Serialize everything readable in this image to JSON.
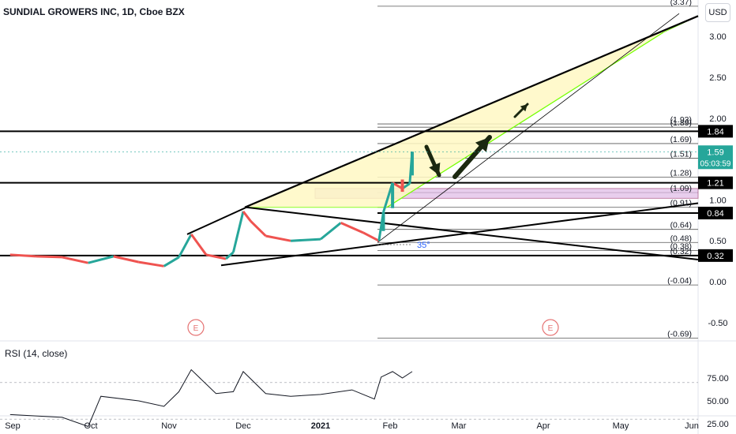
{
  "header": {
    "title": "SUNDIAL GROWERS INC, 1D, Cboe BZX",
    "currency_button": "USD"
  },
  "rsi_panel": {
    "label": "RSI (14, close)",
    "ticks": [
      "75.00",
      "50.00",
      "25.00"
    ]
  },
  "price_axis": {
    "ticks": [
      "3.00",
      "2.50",
      "2.00",
      "1.00",
      "0.50",
      "0.00",
      "-0.50"
    ]
  },
  "badges": {
    "level_1_84": "1.84",
    "level_1_21": "1.21",
    "level_0_84": "0.84",
    "level_0_32": "0.32",
    "last_price": "1.59",
    "countdown": "05:03:59"
  },
  "fib_labels": [
    "(3.37)",
    "(1.93)",
    "(1.89)",
    "(1.69)",
    "(1.51)",
    "(1.28)",
    "(1.09)",
    "(0.91)",
    "(0.64)",
    "(0.48)",
    "(0.38)",
    "(0.32)",
    "(-0.04)",
    "(-0.69)"
  ],
  "annotations": {
    "angle": "35°",
    "earnings_marker": "E"
  },
  "time_axis": {
    "labels": [
      "Sep",
      "Oct",
      "Nov",
      "Dec",
      "2021",
      "Feb",
      "Mar",
      "Apr",
      "May",
      "Jun"
    ]
  },
  "colors": {
    "up": "#26a69a",
    "down": "#ef5350",
    "wedge_fill": "#fff9c4",
    "wedge_edge": "#76ff03",
    "zone_fill": "#e1bee7",
    "rsi_line": "#131722",
    "earnings": "#e57373"
  },
  "chart_data": {
    "type": "candlestick",
    "title": "SUNDIAL GROWERS INC, 1D, Cboe BZX",
    "y_axis": {
      "range": [
        -0.75,
        3.45
      ],
      "ticks": [
        3.0,
        2.5,
        2.0,
        1.0,
        0.5,
        0.0,
        -0.5
      ]
    },
    "x_axis": {
      "labels": [
        "Sep",
        "Oct",
        "Nov",
        "Dec",
        "2021",
        "Feb",
        "Mar",
        "Apr",
        "May",
        "Jun"
      ]
    },
    "last_price": 1.59,
    "horizontal_levels": [
      1.84,
      1.21,
      0.84,
      0.32
    ],
    "fib_levels": [
      3.37,
      1.93,
      1.89,
      1.69,
      1.51,
      1.28,
      1.09,
      0.91,
      0.64,
      0.48,
      0.38,
      0.32,
      -0.04,
      -0.69
    ],
    "price_path": [
      {
        "date": "Aug 31",
        "close": 0.33
      },
      {
        "date": "Sep 10",
        "close": 0.31
      },
      {
        "date": "Sep 20",
        "close": 0.3
      },
      {
        "date": "Sep 30",
        "close": 0.23
      },
      {
        "date": "Oct 10",
        "close": 0.31
      },
      {
        "date": "Oct 20",
        "close": 0.24
      },
      {
        "date": "Oct 30",
        "close": 0.19
      },
      {
        "date": "Nov 5",
        "close": 0.3
      },
      {
        "date": "Nov 10",
        "close": 0.58
      },
      {
        "date": "Nov 16",
        "close": 0.33
      },
      {
        "date": "Nov 24",
        "close": 0.28
      },
      {
        "date": "Nov 27",
        "close": 0.36
      },
      {
        "date": "Dec 1",
        "close": 0.86
      },
      {
        "date": "Dec 4",
        "close": 0.74
      },
      {
        "date": "Dec 10",
        "close": 0.56
      },
      {
        "date": "Dec 20",
        "close": 0.5
      },
      {
        "date": "Jan 1",
        "close": 0.52
      },
      {
        "date": "Jan 10",
        "close": 0.72
      },
      {
        "date": "Jan 20",
        "close": 0.6
      },
      {
        "date": "Jan 27",
        "close": 0.5
      },
      {
        "date": "Jan 29",
        "close": 0.85
      },
      {
        "date": "Feb 2",
        "close": 1.21
      },
      {
        "date": "Feb 6",
        "close": 1.14
      },
      {
        "date": "Feb 9",
        "close": 1.2
      },
      {
        "date": "Feb 10",
        "close": 1.59
      }
    ],
    "rsi": {
      "label": "RSI (14, close)",
      "range": [
        0,
        100
      ],
      "bands": [
        70,
        30
      ],
      "points": [
        {
          "date": "Aug 31",
          "value": 35
        },
        {
          "date": "Sep 20",
          "value": 32
        },
        {
          "date": "Sep 30",
          "value": 22
        },
        {
          "date": "Oct 5",
          "value": 55
        },
        {
          "date": "Oct 20",
          "value": 50
        },
        {
          "date": "Oct 30",
          "value": 44
        },
        {
          "date": "Nov 5",
          "value": 60
        },
        {
          "date": "Nov 10",
          "value": 84
        },
        {
          "date": "Nov 20",
          "value": 58
        },
        {
          "date": "Nov 27",
          "value": 60
        },
        {
          "date": "Dec 1",
          "value": 82
        },
        {
          "date": "Dec 10",
          "value": 58
        },
        {
          "date": "Dec 20",
          "value": 55
        },
        {
          "date": "Jan 1",
          "value": 57
        },
        {
          "date": "Jan 15",
          "value": 62
        },
        {
          "date": "Jan 25",
          "value": 52
        },
        {
          "date": "Jan 28",
          "value": 76
        },
        {
          "date": "Feb 2",
          "value": 82
        },
        {
          "date": "Feb 6",
          "value": 75
        },
        {
          "date": "Feb 10",
          "value": 82
        }
      ]
    }
  }
}
